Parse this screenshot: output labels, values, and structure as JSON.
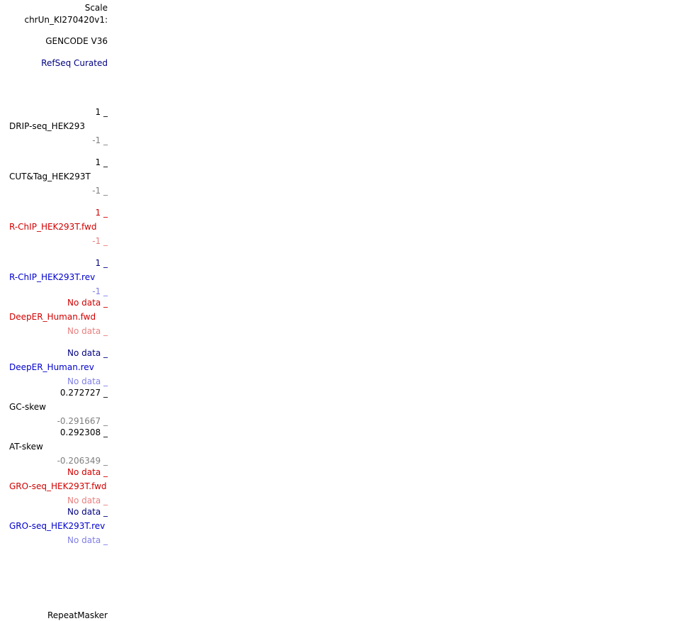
{
  "header": {
    "scale_label": "Scale",
    "chrom_label": "chrUn_KI270420v1:"
  },
  "tracks": {
    "gencode": "GENCODE V36",
    "refseq": "RefSeq Curated",
    "drip": {
      "max": "1 _",
      "name": "DRIP-seq_HEK293",
      "min": "-1 _"
    },
    "cuttag": {
      "max": "1 _",
      "name": "CUT&Tag_HEK293T",
      "min": "-1 _"
    },
    "rchip_fwd": {
      "max": "1 _",
      "name": "R-ChIP_HEK293T.fwd",
      "min": "-1 _"
    },
    "rchip_rev": {
      "max": "1 _",
      "name": "R-ChIP_HEK293T.rev",
      "min": "-1 _"
    },
    "deeper_fwd": {
      "max": "No data _",
      "name": "DeepER_Human.fwd",
      "min": "No data _"
    },
    "deeper_rev": {
      "max": "No data _",
      "name": "DeepER_Human.rev",
      "min": "No data _"
    },
    "gcskew": {
      "max": "0.272727 _",
      "name": "GC-skew",
      "min": "-0.291667 _"
    },
    "atskew": {
      "max": "0.292308 _",
      "name": "AT-skew",
      "min": "-0.206349 _"
    },
    "gro_fwd": {
      "max": "No data _",
      "name": "GRO-seq_HEK293T.fwd",
      "min": "No data _"
    },
    "gro_rev": {
      "max": "No data _",
      "name": "GRO-seq_HEK293T.rev",
      "min": "No data _"
    },
    "repeatmasker": "RepeatMasker"
  },
  "colors": {
    "black": "#000000",
    "gray": "#7f7f7f",
    "navy": "#000080",
    "blue": "#0000cc",
    "light_blue": "#7f7fe5",
    "red": "#d10000",
    "light_red": "#e87f7f"
  }
}
